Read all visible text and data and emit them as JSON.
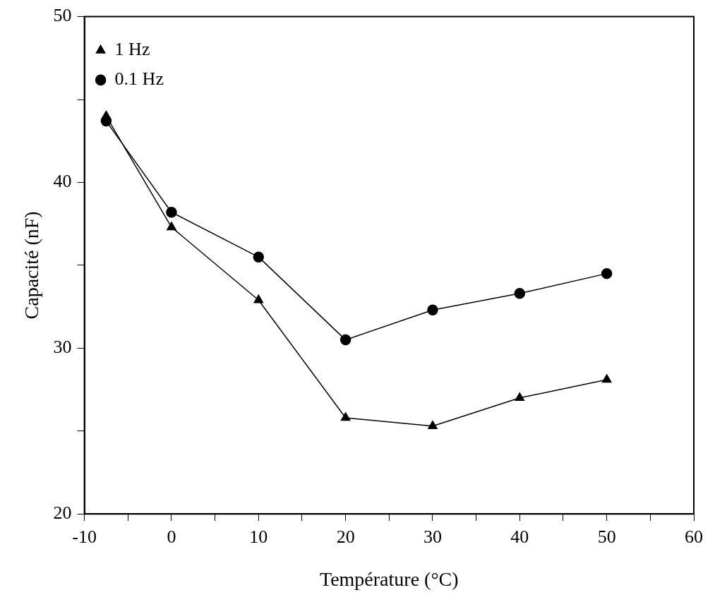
{
  "chart_data": {
    "type": "line",
    "xlabel": "Température (°C)",
    "ylabel": "Capacité (nF)",
    "x": [
      -7.5,
      0,
      10,
      20,
      30,
      40,
      50
    ],
    "series": [
      {
        "name": "1 Hz",
        "color": "#000000",
        "marker": "triangle",
        "values": [
          44.0,
          37.3,
          32.9,
          25.8,
          25.3,
          27.0,
          28.1
        ]
      },
      {
        "name": "0.1 Hz",
        "color": "#000000",
        "marker": "circle",
        "values": [
          43.7,
          38.2,
          35.5,
          30.5,
          32.3,
          33.3,
          34.5
        ]
      }
    ],
    "xlim": [
      -10,
      60
    ],
    "xticks": [
      -10,
      {
        "value": -5,
        "label": null
      },
      0,
      {
        "value": 5,
        "label": null
      },
      10,
      {
        "value": 15,
        "label": null
      },
      20,
      {
        "value": 25,
        "label": null
      },
      30,
      {
        "value": 35,
        "label": null
      },
      40,
      {
        "value": 45,
        "label": null
      },
      50,
      {
        "value": 55,
        "label": null
      },
      60
    ],
    "ylim": [
      20,
      50
    ],
    "yticks": [
      20,
      {
        "value": 25,
        "label": null
      },
      30,
      {
        "value": 35,
        "label": null
      },
      40,
      {
        "value": 45,
        "label": null
      },
      50
    ],
    "grid": false,
    "legend": "top left",
    "line_style": "solid"
  }
}
